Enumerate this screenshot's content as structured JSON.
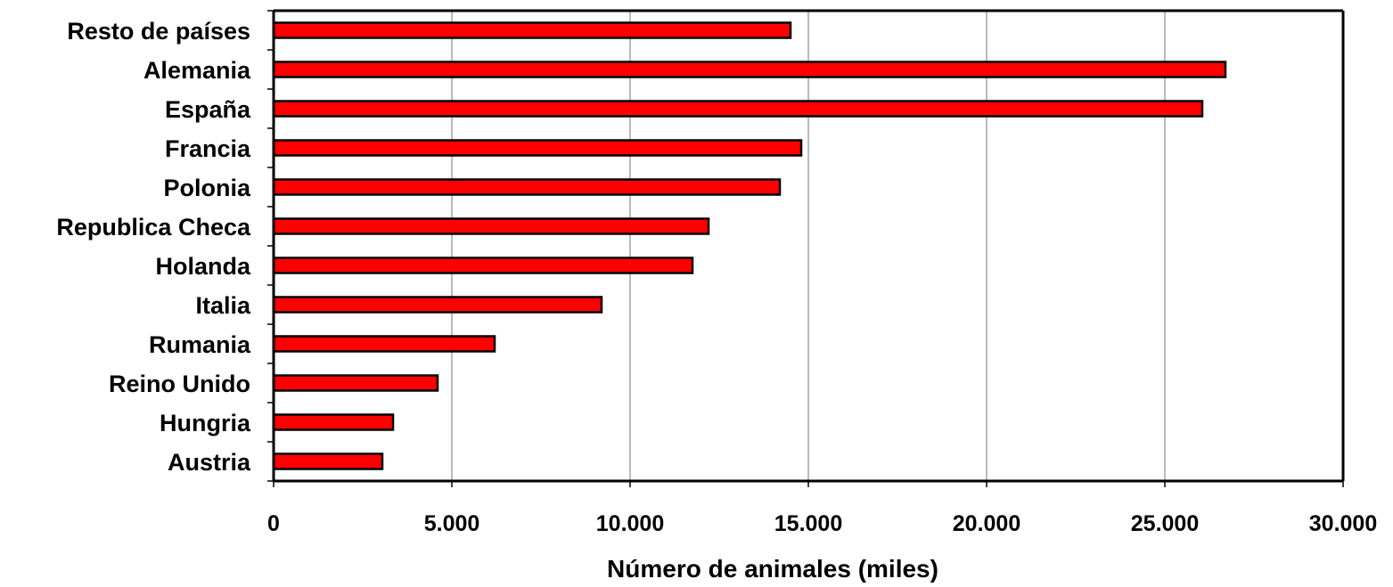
{
  "chart_data": {
    "type": "bar",
    "orientation": "horizontal",
    "categories": [
      "Resto de países",
      "Alemania",
      "España",
      "Francia",
      "Polonia",
      "Republica Checa",
      "Holanda",
      "Italia",
      "Rumania",
      "Reino Unido",
      "Hungria",
      "Austria"
    ],
    "values": [
      14500,
      26700,
      26050,
      14800,
      14200,
      12200,
      11750,
      9200,
      6200,
      4600,
      3350,
      3050
    ],
    "xlabel": "Número de animales (miles)",
    "ylabel": "",
    "xlim": [
      0,
      30000
    ],
    "xticks": [
      0,
      5000,
      10000,
      15000,
      20000,
      25000,
      30000
    ],
    "xtick_labels": [
      "0",
      "5.000",
      "10.000",
      "15.000",
      "20.000",
      "25.000",
      "30.000"
    ],
    "grid": "vertical",
    "legend": "none",
    "bar_color": "#ff0000",
    "bar_edge_color": "#000000",
    "grid_color": "#8c8c8c"
  }
}
